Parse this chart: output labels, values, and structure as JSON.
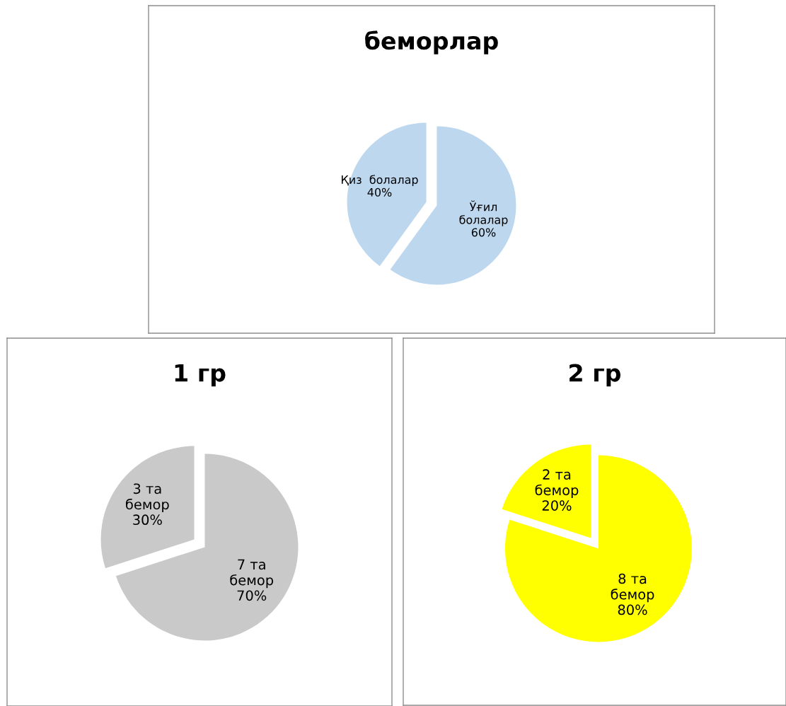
{
  "chart_data": [
    {
      "type": "pie",
      "title": "беморлар",
      "categories": [
        "Қиз  болалар",
        "Ўғил\nболалар"
      ],
      "values": [
        40,
        60
      ],
      "value_labels": [
        "40%",
        "60%"
      ],
      "colors": [
        "#bdd7ee",
        "#bdd7ee"
      ]
    },
    {
      "type": "pie",
      "title": "1 гр",
      "categories": [
        "3 та\nбемор",
        "7 та\nбемор"
      ],
      "values": [
        30,
        70
      ],
      "value_labels": [
        "30%",
        "70%"
      ],
      "colors": [
        "#c9c9c9",
        "#c9c9c9"
      ]
    },
    {
      "type": "pie",
      "title": "2 гр",
      "categories": [
        "2 та\nбемор",
        "8 та\nбемор"
      ],
      "values": [
        20,
        80
      ],
      "value_labels": [
        "20%",
        "80%"
      ],
      "colors": [
        "#ffff00",
        "#ffff00"
      ]
    }
  ]
}
